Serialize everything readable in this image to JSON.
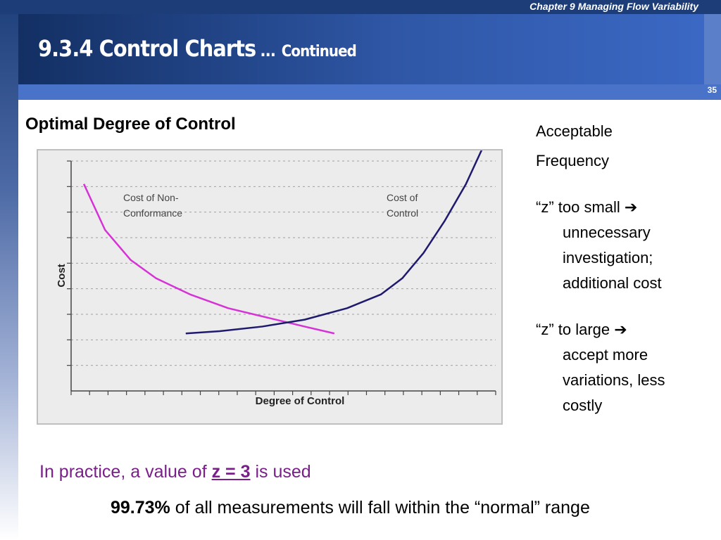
{
  "header": {
    "chapter": "Chapter 9  Managing Flow Variability",
    "title_main": "9.3.4 Control Charts",
    "title_dots": " …",
    "title_continued": "Continued",
    "page_number": "35"
  },
  "chart_heading": "Optimal Degree of Control",
  "chart_data": {
    "type": "line",
    "xlabel": "Degree of Control",
    "ylabel": "Cost",
    "xlim": [
      0,
      10
    ],
    "ylim": [
      0,
      10
    ],
    "grid": true,
    "annotations": [
      "Cost of Non-\nConformance",
      "Cost of\nControl"
    ],
    "series": [
      {
        "name": "Cost of Non-Conformance",
        "color": "#d633d6",
        "x": [
          0.3,
          0.8,
          1.4,
          2.0,
          2.8,
          3.7,
          4.6,
          5.5,
          6.2
        ],
        "y": [
          9.0,
          7.0,
          5.7,
          4.9,
          4.2,
          3.6,
          3.2,
          2.8,
          2.5
        ]
      },
      {
        "name": "Cost of Control",
        "color": "#1f1a6e",
        "x": [
          2.7,
          3.5,
          4.5,
          5.5,
          6.5,
          7.3,
          7.8,
          8.3,
          8.8,
          9.3,
          9.8
        ],
        "y": [
          2.5,
          2.6,
          2.8,
          3.1,
          3.6,
          4.2,
          4.9,
          6.0,
          7.4,
          9.0,
          11.0
        ]
      }
    ]
  },
  "notes": {
    "line1": "Acceptable",
    "line2": "Frequency",
    "small_first": "“z” too small ",
    "small_arrow": "➔",
    "small_rest": [
      "unnecessary",
      "investigation;",
      "additional cost"
    ],
    "large_first": "“z” to large ",
    "large_arrow": "➔",
    "large_rest": [
      "accept more",
      "variations, less",
      "costly"
    ]
  },
  "practice": {
    "prefix": "In practice, a value of ",
    "z_value": "z = 3",
    "suffix": " is used"
  },
  "percent": {
    "value": "99.73%",
    "text": " of all measurements will fall within the “normal” range"
  }
}
